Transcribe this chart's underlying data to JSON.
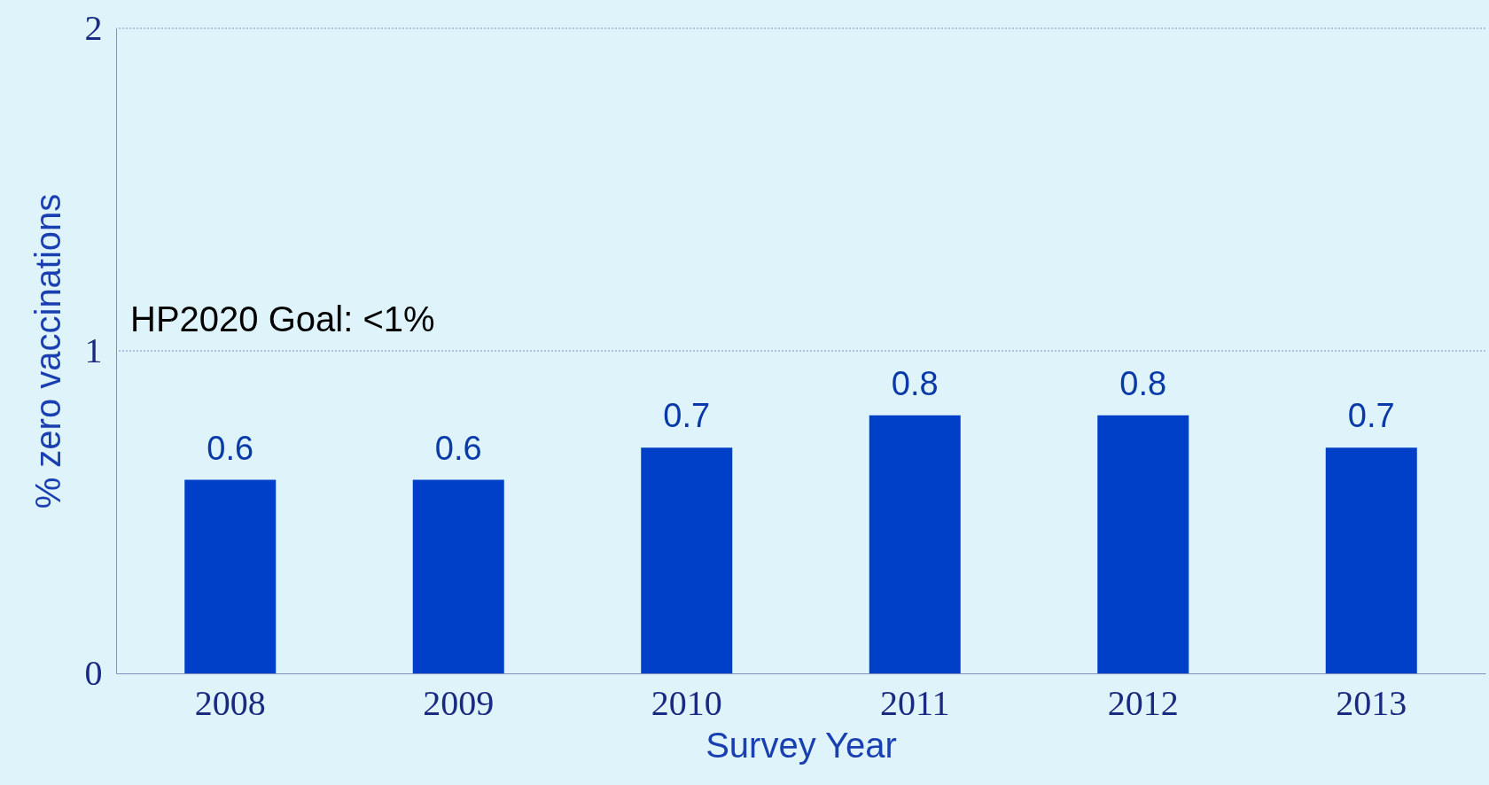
{
  "chart_data": {
    "type": "bar",
    "xlabel": "Survey Year",
    "ylabel": "% zero vaccinations",
    "categories": [
      "2008",
      "2009",
      "2010",
      "2011",
      "2012",
      "2013"
    ],
    "values": [
      0.6,
      0.6,
      0.7,
      0.8,
      0.8,
      0.7
    ],
    "color": "#0040c8",
    "ylim": [
      0,
      2
    ],
    "yticks": [
      0,
      1,
      2
    ],
    "data_labels": true,
    "ref_lines": [
      {
        "axis": "y",
        "value": 1,
        "label": "HP2020 Goal: <1%",
        "line_style": "dotted"
      },
      {
        "axis": "y",
        "value": 2,
        "line_style": "dotted"
      }
    ]
  }
}
